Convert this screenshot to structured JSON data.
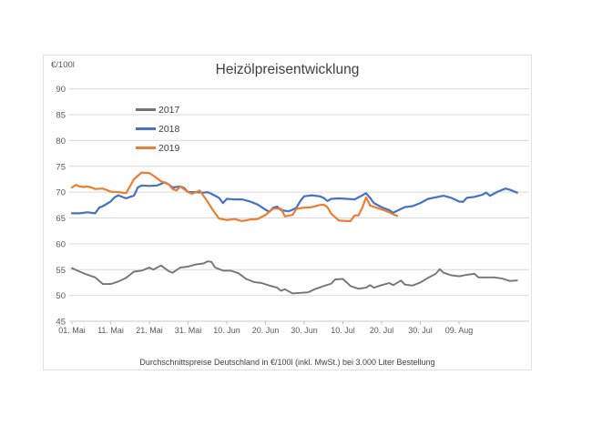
{
  "chart": {
    "title": "Heizölpreisentwicklung",
    "y_axis_unit_label": "€/100l",
    "footnote": "Durchschnittspreise Deutschland in €/100l (inkl. MwSt.) bei 3.000 Liter Bestellung"
  },
  "chart_data": {
    "type": "line",
    "title": "Heizölpreisentwicklung",
    "ylabel": "€/100l",
    "x_unit": "days since 01. Mai",
    "ylim": [
      45,
      90
    ],
    "y_ticks": [
      45,
      50,
      55,
      60,
      65,
      70,
      75,
      80,
      85,
      90
    ],
    "x_tick_days": [
      0,
      10,
      20,
      30,
      40,
      50,
      60,
      70,
      80,
      90,
      100
    ],
    "x_tick_labels": [
      "01. Mai",
      "11. Mai",
      "21. Mai",
      "31. Mai",
      "10. Jun",
      "20. Jun",
      "30. Jun",
      "10. Jul",
      "20. Jul",
      "30. Jul",
      "09. Aug"
    ],
    "grid": true,
    "legend_position": "upper-left-inside",
    "footnote": "Durchschnittspreise Deutschland in €/100l (inkl. MwSt.) bei 3.000 Liter Bestellung",
    "style": {
      "grid_color": "#d9d9d9",
      "baseline_color": "#c9c9c9",
      "tick_color": "#bfbfbf",
      "axis_text_color": "#595959",
      "title_color": "#3f3f3f",
      "border_color": "#e2e2e2"
    },
    "series": [
      {
        "name": "2017",
        "color": "#757575",
        "stroke_width": 1.9,
        "points": [
          [
            0,
            55.3
          ],
          [
            2,
            54.6
          ],
          [
            4,
            54.0
          ],
          [
            6,
            53.5
          ],
          [
            8,
            52.2
          ],
          [
            10,
            52.2
          ],
          [
            12,
            52.7
          ],
          [
            14,
            53.4
          ],
          [
            16,
            54.6
          ],
          [
            18,
            54.8
          ],
          [
            20,
            55.4
          ],
          [
            21,
            55.0
          ],
          [
            23,
            55.8
          ],
          [
            25,
            54.7
          ],
          [
            26,
            54.4
          ],
          [
            28,
            55.4
          ],
          [
            30,
            55.6
          ],
          [
            32,
            56.0
          ],
          [
            34,
            56.2
          ],
          [
            35,
            56.6
          ],
          [
            36,
            56.5
          ],
          [
            37,
            55.4
          ],
          [
            39,
            54.8
          ],
          [
            41,
            54.8
          ],
          [
            43,
            54.3
          ],
          [
            45,
            53.2
          ],
          [
            47,
            52.6
          ],
          [
            49,
            52.4
          ],
          [
            51,
            51.9
          ],
          [
            53,
            51.5
          ],
          [
            54,
            50.9
          ],
          [
            55,
            51.2
          ],
          [
            57,
            50.4
          ],
          [
            59,
            50.5
          ],
          [
            61,
            50.6
          ],
          [
            63,
            51.3
          ],
          [
            65,
            51.8
          ],
          [
            67,
            52.3
          ],
          [
            68,
            53.1
          ],
          [
            70,
            53.2
          ],
          [
            72,
            51.8
          ],
          [
            74,
            51.3
          ],
          [
            76,
            51.5
          ],
          [
            77,
            52.0
          ],
          [
            78,
            51.5
          ],
          [
            80,
            52.0
          ],
          [
            82,
            52.4
          ],
          [
            83,
            52.0
          ],
          [
            85,
            52.9
          ],
          [
            86,
            52.1
          ],
          [
            88,
            51.9
          ],
          [
            90,
            52.5
          ],
          [
            92,
            53.4
          ],
          [
            94,
            54.2
          ],
          [
            95,
            55.1
          ],
          [
            96,
            54.4
          ],
          [
            98,
            53.9
          ],
          [
            100,
            53.7
          ],
          [
            102,
            54.0
          ],
          [
            104,
            54.2
          ],
          [
            105,
            53.5
          ],
          [
            107,
            53.5
          ],
          [
            109,
            53.5
          ],
          [
            111,
            53.3
          ],
          [
            113,
            52.8
          ],
          [
            115,
            52.9
          ]
        ]
      },
      {
        "name": "2018",
        "color": "#4472c4",
        "stroke_width": 2.2,
        "points": [
          [
            0,
            65.9
          ],
          [
            2,
            65.9
          ],
          [
            4,
            66.1
          ],
          [
            6,
            65.9
          ],
          [
            7,
            67.0
          ],
          [
            8,
            67.3
          ],
          [
            10,
            68.2
          ],
          [
            11,
            69.0
          ],
          [
            12,
            69.4
          ],
          [
            14,
            68.8
          ],
          [
            15,
            69.1
          ],
          [
            16,
            69.3
          ],
          [
            17,
            70.9
          ],
          [
            18,
            71.3
          ],
          [
            20,
            71.2
          ],
          [
            22,
            71.3
          ],
          [
            24,
            71.9
          ],
          [
            25,
            71.5
          ],
          [
            26,
            70.9
          ],
          [
            28,
            71.1
          ],
          [
            29,
            70.8
          ],
          [
            30,
            70.0
          ],
          [
            32,
            70.0
          ],
          [
            34,
            69.9
          ],
          [
            35,
            70.0
          ],
          [
            36,
            69.7
          ],
          [
            38,
            68.9
          ],
          [
            39,
            67.9
          ],
          [
            40,
            68.7
          ],
          [
            42,
            68.6
          ],
          [
            44,
            68.6
          ],
          [
            46,
            68.2
          ],
          [
            48,
            67.6
          ],
          [
            50,
            66.6
          ],
          [
            51,
            66.2
          ],
          [
            52,
            67.0
          ],
          [
            53,
            67.2
          ],
          [
            54,
            66.5
          ],
          [
            56,
            66.3
          ],
          [
            57,
            66.6
          ],
          [
            58,
            67.0
          ],
          [
            59,
            68.3
          ],
          [
            60,
            69.2
          ],
          [
            62,
            69.4
          ],
          [
            64,
            69.2
          ],
          [
            65,
            68.9
          ],
          [
            66,
            68.3
          ],
          [
            67,
            68.7
          ],
          [
            69,
            68.8
          ],
          [
            71,
            68.7
          ],
          [
            73,
            68.6
          ],
          [
            75,
            69.4
          ],
          [
            76,
            69.8
          ],
          [
            77,
            68.9
          ],
          [
            78,
            67.9
          ],
          [
            80,
            67.1
          ],
          [
            82,
            66.5
          ],
          [
            83,
            66.0
          ],
          [
            84,
            66.4
          ],
          [
            86,
            67.1
          ],
          [
            88,
            67.3
          ],
          [
            90,
            67.9
          ],
          [
            92,
            68.7
          ],
          [
            94,
            69.0
          ],
          [
            96,
            69.3
          ],
          [
            98,
            68.9
          ],
          [
            100,
            68.2
          ],
          [
            101,
            68.1
          ],
          [
            102,
            68.9
          ],
          [
            104,
            69.1
          ],
          [
            106,
            69.5
          ],
          [
            107,
            69.9
          ],
          [
            108,
            69.3
          ],
          [
            110,
            70.1
          ],
          [
            112,
            70.7
          ],
          [
            113,
            70.5
          ],
          [
            115,
            69.9
          ]
        ]
      },
      {
        "name": "2019",
        "color": "#ed7d31",
        "stroke_width": 2.2,
        "points": [
          [
            0,
            70.9
          ],
          [
            1,
            71.4
          ],
          [
            2,
            71.1
          ],
          [
            3,
            71.0
          ],
          [
            4,
            71.1
          ],
          [
            5,
            70.9
          ],
          [
            6,
            70.6
          ],
          [
            8,
            70.7
          ],
          [
            10,
            70.1
          ],
          [
            12,
            70.0
          ],
          [
            14,
            69.8
          ],
          [
            16,
            72.5
          ],
          [
            18,
            73.8
          ],
          [
            20,
            73.7
          ],
          [
            21,
            73.2
          ],
          [
            23,
            72.1
          ],
          [
            25,
            71.5
          ],
          [
            26,
            70.6
          ],
          [
            27,
            70.3
          ],
          [
            28,
            71.1
          ],
          [
            30,
            70.0
          ],
          [
            31,
            69.7
          ],
          [
            32,
            70.0
          ],
          [
            33,
            70.3
          ],
          [
            35,
            68.2
          ],
          [
            36,
            67.0
          ],
          [
            37,
            65.9
          ],
          [
            38,
            64.9
          ],
          [
            40,
            64.6
          ],
          [
            42,
            64.8
          ],
          [
            44,
            64.4
          ],
          [
            46,
            64.7
          ],
          [
            48,
            64.8
          ],
          [
            50,
            65.6
          ],
          [
            52,
            66.8
          ],
          [
            54,
            66.8
          ],
          [
            55,
            65.3
          ],
          [
            57,
            65.6
          ],
          [
            58,
            66.8
          ],
          [
            60,
            67.0
          ],
          [
            62,
            67.1
          ],
          [
            64,
            67.5
          ],
          [
            65,
            67.6
          ],
          [
            66,
            67.1
          ],
          [
            67,
            65.8
          ],
          [
            69,
            64.5
          ],
          [
            71,
            64.4
          ],
          [
            72,
            64.4
          ],
          [
            73,
            65.5
          ],
          [
            74,
            65.5
          ],
          [
            75,
            67.0
          ],
          [
            76,
            69.0
          ],
          [
            77,
            67.4
          ],
          [
            79,
            66.9
          ],
          [
            81,
            66.4
          ],
          [
            82,
            66.1
          ],
          [
            83,
            65.7
          ],
          [
            84,
            65.4
          ]
        ]
      }
    ]
  }
}
